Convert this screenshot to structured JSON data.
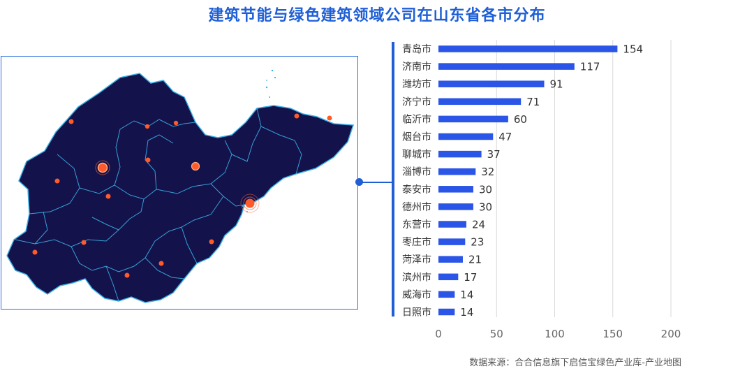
{
  "title": "建筑节能与绿色建筑领域公司在山东省各市分布",
  "source": "数据来源：合合信息旗下启信宝绿色产业库-产业地图",
  "colors": {
    "accent": "#1f5fd6",
    "bar": "#2b55e6",
    "map_fill": "#14124a",
    "map_border": "#3ab0e8",
    "city_dot": "#ff5a2a"
  },
  "chart_data": {
    "type": "bar",
    "orientation": "horizontal",
    "categories": [
      "青岛市",
      "济南市",
      "潍坊市",
      "济宁市",
      "临沂市",
      "烟台市",
      "聊城市",
      "淄博市",
      "泰安市",
      "德州市",
      "东营市",
      "枣庄市",
      "菏泽市",
      "滨州市",
      "威海市",
      "日照市"
    ],
    "values": [
      154,
      117,
      91,
      71,
      60,
      47,
      37,
      32,
      30,
      30,
      24,
      23,
      21,
      17,
      14,
      14
    ],
    "title": "建筑节能与绿色建筑领域公司在山东省各市分布",
    "xlabel": "",
    "ylabel": "",
    "xlim": [
      0,
      200
    ],
    "xticks": [
      0,
      50,
      100,
      150,
      200
    ],
    "grid": true
  }
}
